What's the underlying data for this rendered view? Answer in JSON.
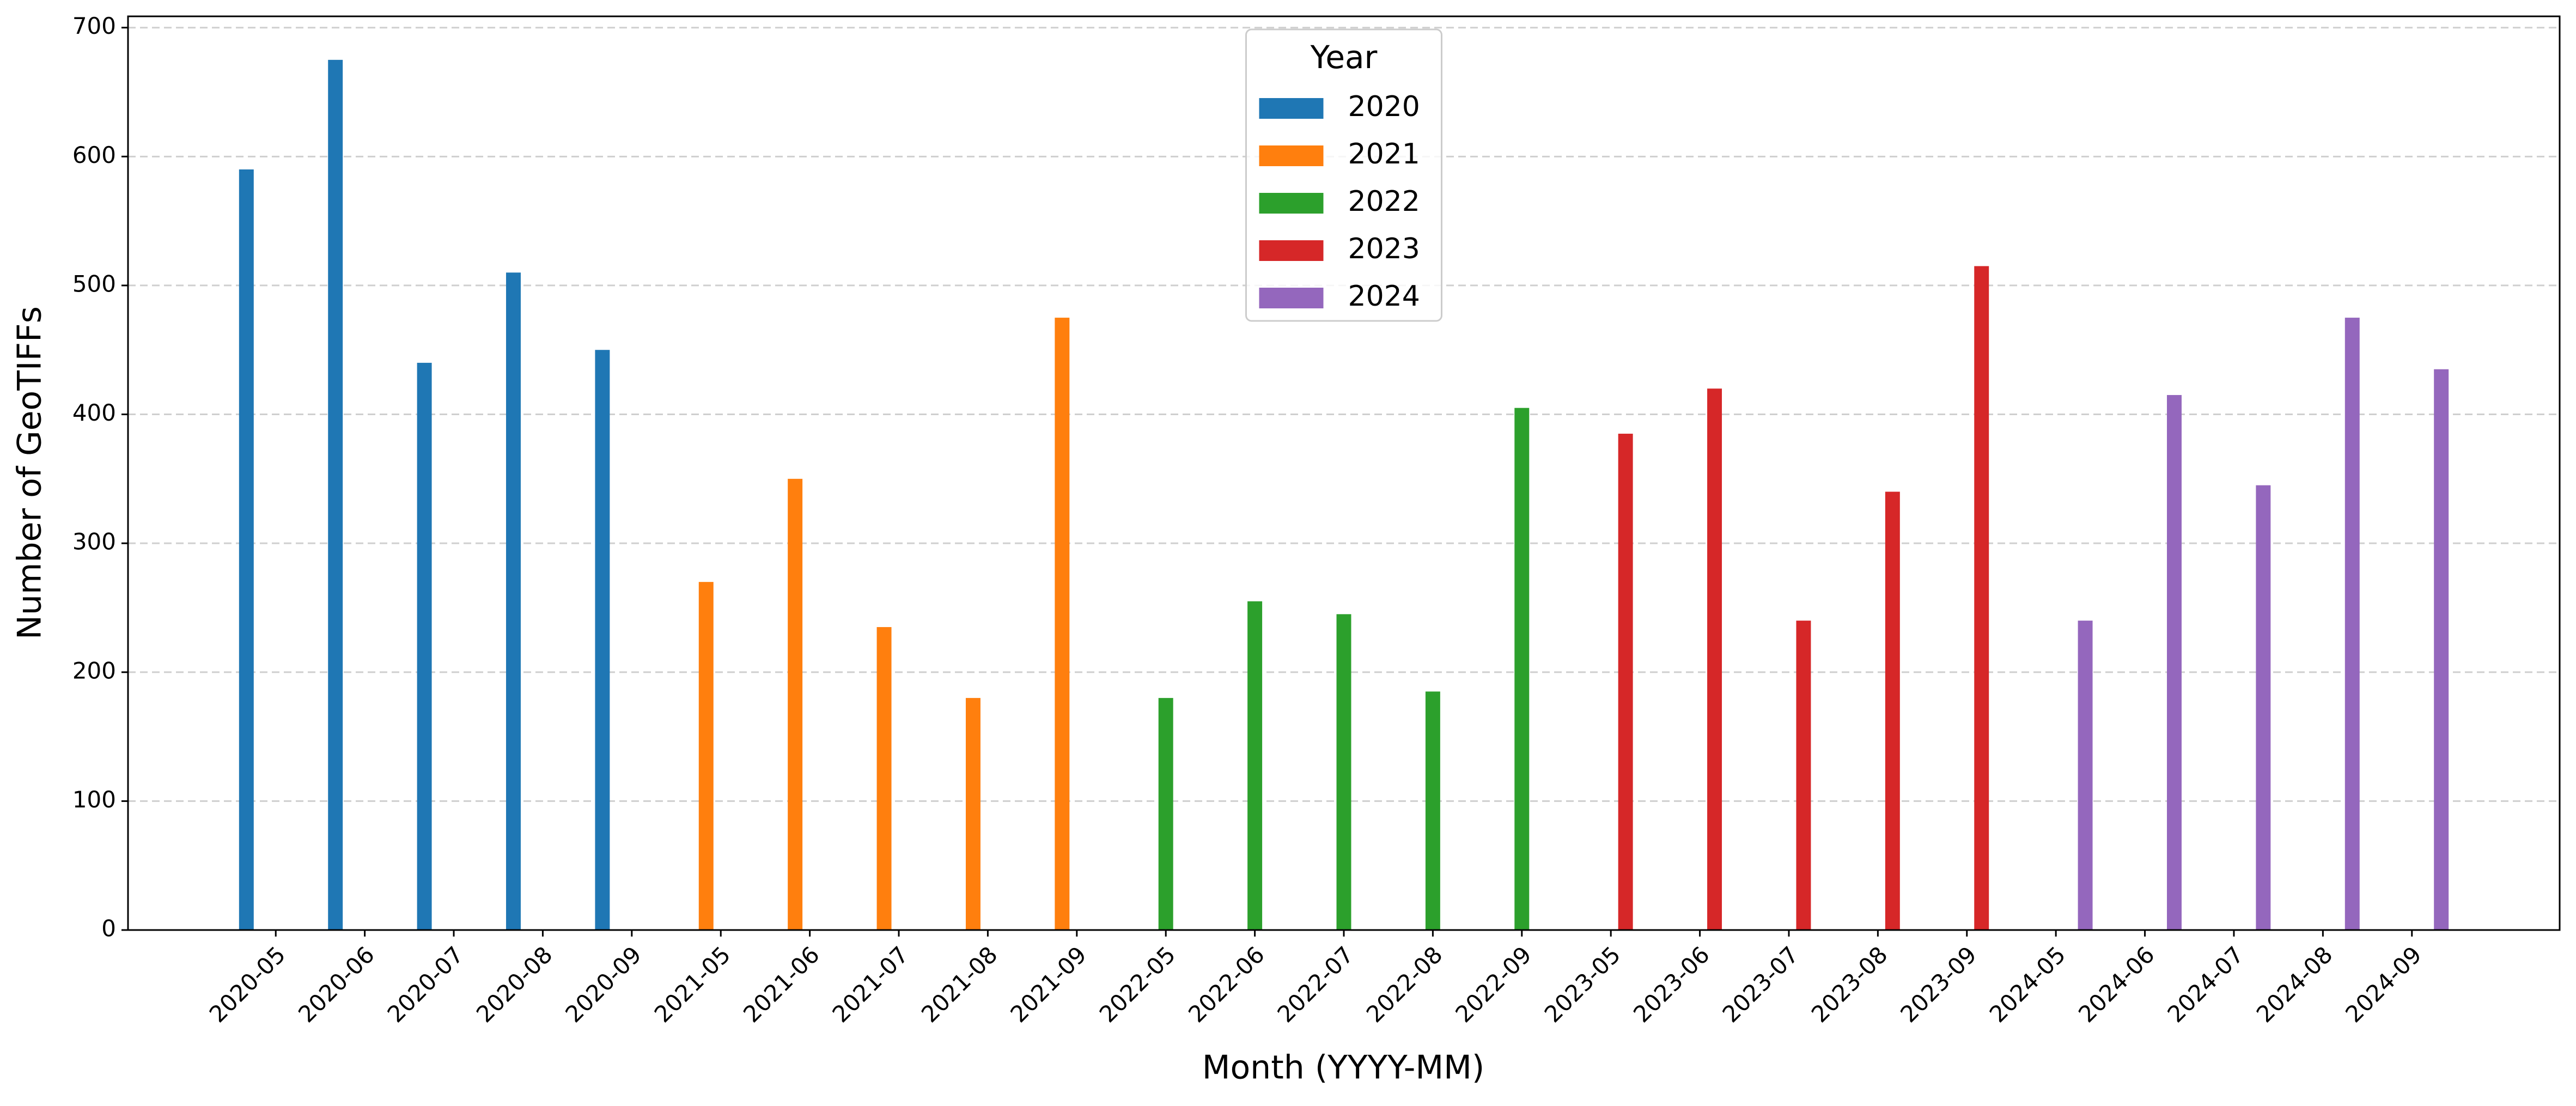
{
  "chart_data": {
    "type": "bar",
    "xlabel": "Month (YYYY-MM)",
    "ylabel": "Number of GeoTIFFs",
    "categories": [
      "2020-05",
      "2020-06",
      "2020-07",
      "2020-08",
      "2020-09",
      "2021-05",
      "2021-06",
      "2021-07",
      "2021-08",
      "2021-09",
      "2022-05",
      "2022-06",
      "2022-07",
      "2022-08",
      "2022-09",
      "2023-05",
      "2023-06",
      "2023-07",
      "2023-08",
      "2023-09",
      "2024-05",
      "2024-06",
      "2024-07",
      "2024-08",
      "2024-09"
    ],
    "series": [
      {
        "name": "2020",
        "color": "#1f77b4",
        "values": [
          590,
          675,
          440,
          510,
          450,
          null,
          null,
          null,
          null,
          null,
          null,
          null,
          null,
          null,
          null,
          null,
          null,
          null,
          null,
          null,
          null,
          null,
          null,
          null,
          null
        ]
      },
      {
        "name": "2021",
        "color": "#ff7f0e",
        "values": [
          null,
          null,
          null,
          null,
          null,
          270,
          350,
          235,
          180,
          475,
          null,
          null,
          null,
          null,
          null,
          null,
          null,
          null,
          null,
          null,
          null,
          null,
          null,
          null,
          null
        ]
      },
      {
        "name": "2022",
        "color": "#2ca02c",
        "values": [
          null,
          null,
          null,
          null,
          null,
          null,
          null,
          null,
          null,
          null,
          180,
          255,
          245,
          185,
          405,
          null,
          null,
          null,
          null,
          null,
          null,
          null,
          null,
          null,
          null
        ]
      },
      {
        "name": "2023",
        "color": "#d62728",
        "values": [
          null,
          null,
          null,
          null,
          null,
          null,
          null,
          null,
          null,
          null,
          null,
          null,
          null,
          null,
          null,
          385,
          420,
          240,
          340,
          515,
          null,
          null,
          null,
          null,
          null
        ]
      },
      {
        "name": "2024",
        "color": "#9467bd",
        "values": [
          null,
          null,
          null,
          null,
          null,
          null,
          null,
          null,
          null,
          null,
          null,
          null,
          null,
          null,
          null,
          null,
          null,
          null,
          null,
          null,
          240,
          415,
          345,
          475,
          435
        ]
      }
    ],
    "legend_title": "Year",
    "legend": "upper center",
    "ylim": [
      0,
      708.75
    ],
    "yticks": [
      0,
      100,
      200,
      300,
      400,
      500,
      600,
      700
    ],
    "grid": true
  }
}
